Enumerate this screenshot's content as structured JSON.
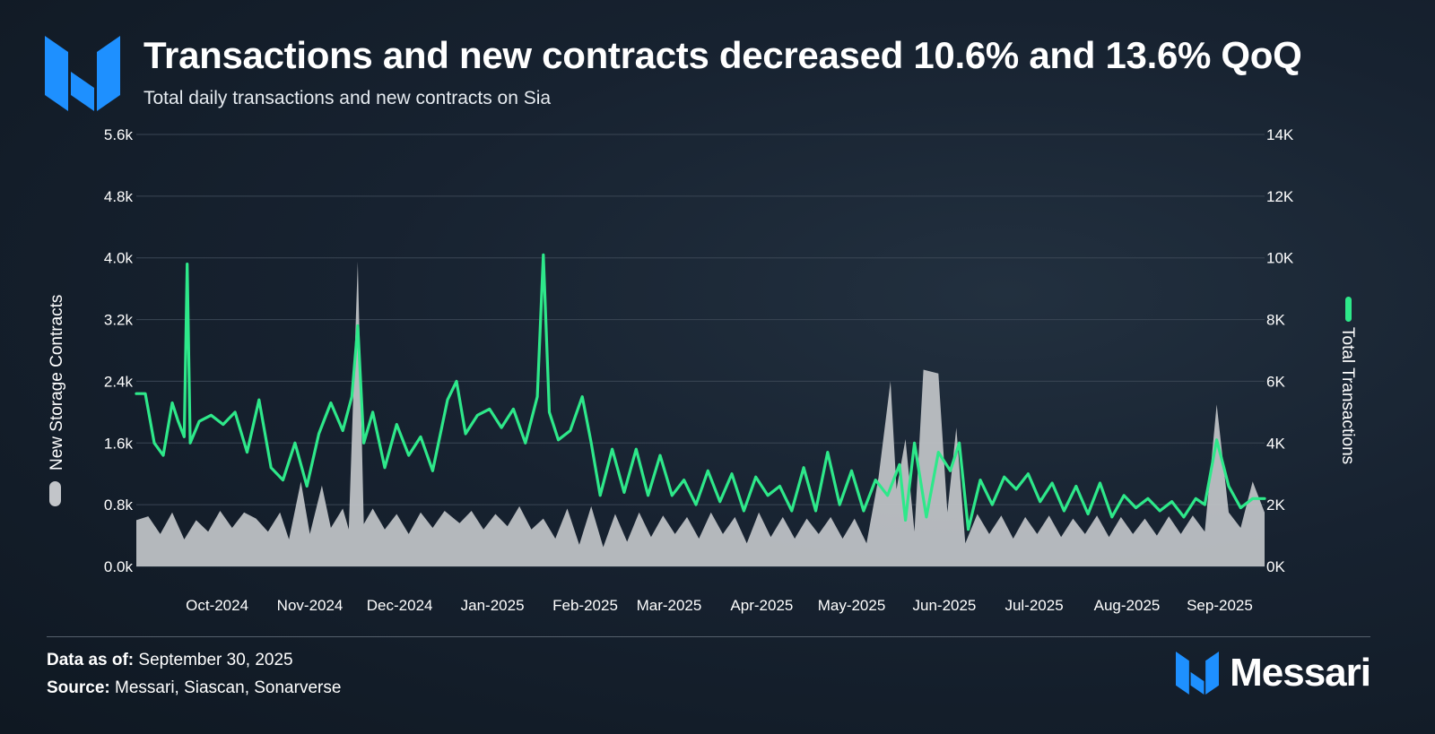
{
  "header": {
    "title": "Transactions and new contracts decreased 10.6% and 13.6% QoQ",
    "subtitle": "Total daily transactions and new contracts on Sia"
  },
  "footer": {
    "data_as_of_label": "Data as of:",
    "data_as_of_value": "September 30, 2025",
    "source_label": "Source:",
    "source_value": "Messari, Siascan, Sonarverse"
  },
  "brand": {
    "name": "Messari"
  },
  "colors": {
    "transactions_line": "#2ee88a",
    "contracts_area": "#c2c5c9",
    "logo_blue": "#1e90ff",
    "grid": "#3a4654"
  },
  "chart_data": {
    "type": "line+area",
    "title": "Transactions and new contracts decreased 10.6% and 13.6% QoQ",
    "subtitle": "Total daily transactions and new contracts on Sia",
    "x_range": [
      "2024-09-18",
      "2025-09-30"
    ],
    "x_tick_labels": [
      "Oct-2024",
      "Nov-2024",
      "Dec-2024",
      "Jan-2025",
      "Feb-2025",
      "Mar-2025",
      "Apr-2025",
      "May-2025",
      "Jun-2025",
      "Jul-2025",
      "Aug-2025",
      "Sep-2025"
    ],
    "left_axis": {
      "label": "New Storage Contracts",
      "min": 0,
      "max": 5600,
      "ticks": [
        "0.0k",
        "0.8k",
        "1.6k",
        "2.4k",
        "3.2k",
        "4.0k",
        "4.8k",
        "5.6k"
      ]
    },
    "right_axis": {
      "label": "Total Transactions",
      "min": 0,
      "max": 14000,
      "ticks": [
        "0K",
        "2K",
        "4K",
        "6K",
        "8K",
        "10K",
        "12K",
        "14K"
      ]
    },
    "series": [
      {
        "name": "New Storage Contracts",
        "axis": "left",
        "style": "area",
        "points": [
          [
            "2024-09-18",
            600
          ],
          [
            "2024-09-22",
            650
          ],
          [
            "2024-09-26",
            420
          ],
          [
            "2024-09-30",
            700
          ],
          [
            "2024-10-04",
            350
          ],
          [
            "2024-10-08",
            600
          ],
          [
            "2024-10-12",
            450
          ],
          [
            "2024-10-16",
            720
          ],
          [
            "2024-10-20",
            500
          ],
          [
            "2024-10-24",
            700
          ],
          [
            "2024-10-28",
            620
          ],
          [
            "2024-11-01",
            450
          ],
          [
            "2024-11-05",
            700
          ],
          [
            "2024-11-08",
            350
          ],
          [
            "2024-11-12",
            1100
          ],
          [
            "2024-11-15",
            420
          ],
          [
            "2024-11-19",
            1050
          ],
          [
            "2024-11-22",
            500
          ],
          [
            "2024-11-26",
            750
          ],
          [
            "2024-11-28",
            480
          ],
          [
            "2024-12-01",
            3950
          ],
          [
            "2024-12-03",
            550
          ],
          [
            "2024-12-06",
            750
          ],
          [
            "2024-12-10",
            480
          ],
          [
            "2024-12-14",
            680
          ],
          [
            "2024-12-18",
            420
          ],
          [
            "2024-12-22",
            700
          ],
          [
            "2024-12-26",
            500
          ],
          [
            "2024-12-30",
            720
          ],
          [
            "2025-01-04",
            560
          ],
          [
            "2025-01-08",
            720
          ],
          [
            "2025-01-12",
            480
          ],
          [
            "2025-01-16",
            680
          ],
          [
            "2025-01-20",
            520
          ],
          [
            "2025-01-24",
            780
          ],
          [
            "2025-01-28",
            480
          ],
          [
            "2025-02-01",
            620
          ],
          [
            "2025-02-05",
            360
          ],
          [
            "2025-02-09",
            750
          ],
          [
            "2025-02-13",
            280
          ],
          [
            "2025-02-17",
            780
          ],
          [
            "2025-02-21",
            250
          ],
          [
            "2025-02-25",
            680
          ],
          [
            "2025-03-01",
            320
          ],
          [
            "2025-03-05",
            700
          ],
          [
            "2025-03-09",
            380
          ],
          [
            "2025-03-13",
            660
          ],
          [
            "2025-03-17",
            420
          ],
          [
            "2025-03-21",
            640
          ],
          [
            "2025-03-25",
            360
          ],
          [
            "2025-03-29",
            700
          ],
          [
            "2025-04-02",
            420
          ],
          [
            "2025-04-06",
            640
          ],
          [
            "2025-04-10",
            300
          ],
          [
            "2025-04-14",
            700
          ],
          [
            "2025-04-18",
            380
          ],
          [
            "2025-04-22",
            640
          ],
          [
            "2025-04-26",
            360
          ],
          [
            "2025-04-30",
            620
          ],
          [
            "2025-05-04",
            420
          ],
          [
            "2025-05-08",
            640
          ],
          [
            "2025-05-12",
            360
          ],
          [
            "2025-05-16",
            620
          ],
          [
            "2025-05-20",
            300
          ],
          [
            "2025-05-24",
            1150
          ],
          [
            "2025-05-28",
            2400
          ],
          [
            "2025-05-30",
            1000
          ],
          [
            "2025-06-02",
            1650
          ],
          [
            "2025-06-05",
            450
          ],
          [
            "2025-06-08",
            2550
          ],
          [
            "2025-06-13",
            2500
          ],
          [
            "2025-06-16",
            700
          ],
          [
            "2025-06-19",
            1800
          ],
          [
            "2025-06-22",
            300
          ],
          [
            "2025-06-26",
            680
          ],
          [
            "2025-06-30",
            420
          ],
          [
            "2025-07-04",
            660
          ],
          [
            "2025-07-08",
            360
          ],
          [
            "2025-07-12",
            640
          ],
          [
            "2025-07-16",
            420
          ],
          [
            "2025-07-20",
            660
          ],
          [
            "2025-07-24",
            380
          ],
          [
            "2025-07-28",
            620
          ],
          [
            "2025-08-01",
            420
          ],
          [
            "2025-08-05",
            660
          ],
          [
            "2025-08-09",
            380
          ],
          [
            "2025-08-13",
            640
          ],
          [
            "2025-08-17",
            420
          ],
          [
            "2025-08-21",
            620
          ],
          [
            "2025-08-25",
            400
          ],
          [
            "2025-08-29",
            650
          ],
          [
            "2025-09-02",
            420
          ],
          [
            "2025-09-06",
            660
          ],
          [
            "2025-09-10",
            450
          ],
          [
            "2025-09-14",
            2100
          ],
          [
            "2025-09-18",
            700
          ],
          [
            "2025-09-22",
            500
          ],
          [
            "2025-09-26",
            1100
          ],
          [
            "2025-09-30",
            700
          ]
        ]
      },
      {
        "name": "Total Transactions",
        "axis": "right",
        "style": "line",
        "points": [
          [
            "2024-09-18",
            5600
          ],
          [
            "2024-09-21",
            5600
          ],
          [
            "2024-09-24",
            4000
          ],
          [
            "2024-09-27",
            3600
          ],
          [
            "2024-09-30",
            5300
          ],
          [
            "2024-10-02",
            4700
          ],
          [
            "2024-10-04",
            4200
          ],
          [
            "2024-10-05",
            9800
          ],
          [
            "2024-10-06",
            4000
          ],
          [
            "2024-10-09",
            4700
          ],
          [
            "2024-10-13",
            4900
          ],
          [
            "2024-10-17",
            4600
          ],
          [
            "2024-10-21",
            5000
          ],
          [
            "2024-10-25",
            3700
          ],
          [
            "2024-10-29",
            5400
          ],
          [
            "2024-11-02",
            3200
          ],
          [
            "2024-11-06",
            2800
          ],
          [
            "2024-11-10",
            4000
          ],
          [
            "2024-11-14",
            2600
          ],
          [
            "2024-11-18",
            4300
          ],
          [
            "2024-11-22",
            5300
          ],
          [
            "2024-11-26",
            4400
          ],
          [
            "2024-11-29",
            5500
          ],
          [
            "2024-12-01",
            7800
          ],
          [
            "2024-12-03",
            4000
          ],
          [
            "2024-12-06",
            5000
          ],
          [
            "2024-12-10",
            3200
          ],
          [
            "2024-12-14",
            4600
          ],
          [
            "2024-12-18",
            3600
          ],
          [
            "2024-12-22",
            4200
          ],
          [
            "2024-12-26",
            3100
          ],
          [
            "2024-12-31",
            5400
          ],
          [
            "2025-01-03",
            6000
          ],
          [
            "2025-01-06",
            4300
          ],
          [
            "2025-01-10",
            4900
          ],
          [
            "2025-01-14",
            5100
          ],
          [
            "2025-01-18",
            4500
          ],
          [
            "2025-01-22",
            5100
          ],
          [
            "2025-01-26",
            4000
          ],
          [
            "2025-01-30",
            5500
          ],
          [
            "2025-02-01",
            10100
          ],
          [
            "2025-02-03",
            5000
          ],
          [
            "2025-02-06",
            4100
          ],
          [
            "2025-02-10",
            4400
          ],
          [
            "2025-02-14",
            5500
          ],
          [
            "2025-02-17",
            4000
          ],
          [
            "2025-02-20",
            2300
          ],
          [
            "2025-02-24",
            3800
          ],
          [
            "2025-02-28",
            2400
          ],
          [
            "2025-03-04",
            3800
          ],
          [
            "2025-03-08",
            2300
          ],
          [
            "2025-03-12",
            3600
          ],
          [
            "2025-03-16",
            2300
          ],
          [
            "2025-03-20",
            2800
          ],
          [
            "2025-03-24",
            2000
          ],
          [
            "2025-03-28",
            3100
          ],
          [
            "2025-04-01",
            2100
          ],
          [
            "2025-04-05",
            3000
          ],
          [
            "2025-04-09",
            1800
          ],
          [
            "2025-04-13",
            2900
          ],
          [
            "2025-04-17",
            2300
          ],
          [
            "2025-04-21",
            2600
          ],
          [
            "2025-04-25",
            1800
          ],
          [
            "2025-04-29",
            3200
          ],
          [
            "2025-05-03",
            1800
          ],
          [
            "2025-05-07",
            3700
          ],
          [
            "2025-05-11",
            2000
          ],
          [
            "2025-05-15",
            3100
          ],
          [
            "2025-05-19",
            1800
          ],
          [
            "2025-05-23",
            2800
          ],
          [
            "2025-05-27",
            2300
          ],
          [
            "2025-05-31",
            3300
          ],
          [
            "2025-06-02",
            1500
          ],
          [
            "2025-06-05",
            4000
          ],
          [
            "2025-06-09",
            1600
          ],
          [
            "2025-06-13",
            3700
          ],
          [
            "2025-06-17",
            3100
          ],
          [
            "2025-06-20",
            4000
          ],
          [
            "2025-06-23",
            1200
          ],
          [
            "2025-06-27",
            2800
          ],
          [
            "2025-07-01",
            2000
          ],
          [
            "2025-07-05",
            2900
          ],
          [
            "2025-07-09",
            2500
          ],
          [
            "2025-07-13",
            3000
          ],
          [
            "2025-07-17",
            2100
          ],
          [
            "2025-07-21",
            2700
          ],
          [
            "2025-07-25",
            1800
          ],
          [
            "2025-07-29",
            2600
          ],
          [
            "2025-08-02",
            1700
          ],
          [
            "2025-08-06",
            2700
          ],
          [
            "2025-08-10",
            1600
          ],
          [
            "2025-08-14",
            2300
          ],
          [
            "2025-08-18",
            1900
          ],
          [
            "2025-08-22",
            2200
          ],
          [
            "2025-08-26",
            1800
          ],
          [
            "2025-08-30",
            2100
          ],
          [
            "2025-09-03",
            1600
          ],
          [
            "2025-09-07",
            2200
          ],
          [
            "2025-09-10",
            2000
          ],
          [
            "2025-09-14",
            4100
          ],
          [
            "2025-09-18",
            2600
          ],
          [
            "2025-09-22",
            1900
          ],
          [
            "2025-09-26",
            2200
          ],
          [
            "2025-09-30",
            2200
          ]
        ]
      }
    ],
    "legend": [
      {
        "name": "New Storage Contracts",
        "placement": "left-axis",
        "color": "#c2c5c9"
      },
      {
        "name": "Total Transactions",
        "placement": "right-axis",
        "color": "#2ee88a"
      }
    ],
    "grid": true
  }
}
